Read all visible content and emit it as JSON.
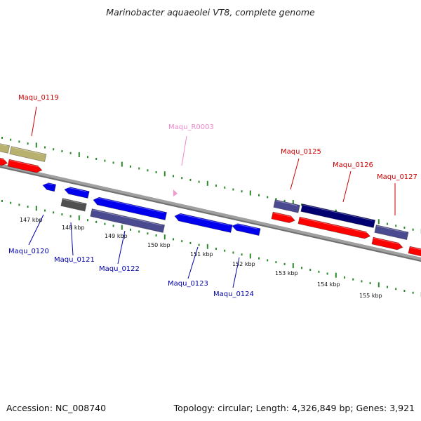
{
  "title": "Marinobacter aquaeolei VT8, complete genome",
  "footer": {
    "accession": "Accession: NC_008740",
    "summary": "Topology: circular; Length: 4,326,849 bp; Genes: 3,921"
  },
  "colors": {
    "backbone": "#808080",
    "tick": "#2a8a2a",
    "red_gene": "#ff0000",
    "blue_gene": "#0000ee",
    "slate_gene": "#4a4a90",
    "navy_gene": "#000070",
    "khaki_gene": "#b8b06e",
    "gray_gene": "#505050",
    "pink_feature": "#f09ad0",
    "label_red": "#cc0000",
    "label_blue": "#0000aa",
    "label_pink": "#ee88cc"
  },
  "scale_labels": [
    "147 kbp",
    "148 kbp",
    "149 kbp",
    "150 kbp",
    "151 kbp",
    "152 kbp",
    "153 kbp",
    "154 kbp",
    "155 kbp"
  ],
  "gene_labels": [
    {
      "text": "Maqu_0119",
      "strand": "forward"
    },
    {
      "text": "Maqu_R0003",
      "strand": "feature"
    },
    {
      "text": "Maqu_0125",
      "strand": "forward"
    },
    {
      "text": "Maqu_0126",
      "strand": "forward"
    },
    {
      "text": "Maqu_0127",
      "strand": "forward"
    },
    {
      "text": "Maqu_0120",
      "strand": "reverse"
    },
    {
      "text": "Maqu_0121",
      "strand": "reverse"
    },
    {
      "text": "Maqu_0122",
      "strand": "reverse"
    },
    {
      "text": "Maqu_0123",
      "strand": "reverse"
    },
    {
      "text": "Maqu_0124",
      "strand": "reverse"
    }
  ]
}
